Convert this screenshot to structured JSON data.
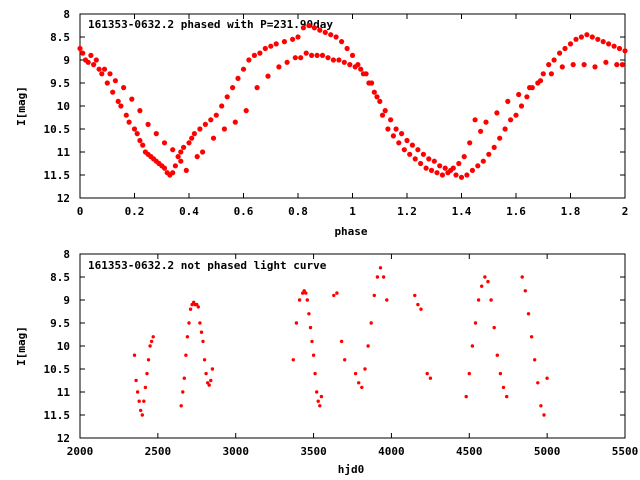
{
  "chart_data": [
    {
      "type": "scatter",
      "title": "161353-0632.2 phased with P=231.90day",
      "xlabel": "phase",
      "ylabel": "I[mag]",
      "xlim": [
        0,
        2
      ],
      "ylim": [
        8,
        12
      ],
      "y_inverted": true,
      "x_ticks": [
        "0",
        "0.2",
        "0.4",
        "0.6",
        "0.8",
        "1",
        "1.2",
        "1.4",
        "1.6",
        "1.8",
        "2"
      ],
      "y_ticks": [
        "8",
        "8.5",
        "9",
        "9.5",
        "10",
        "10.5",
        "11",
        "11.5",
        "12"
      ],
      "grid": false,
      "marker_color": "#ff0000",
      "series": [
        {
          "x": [
            0.0,
            0.01,
            0.02,
            0.03,
            0.05,
            0.07,
            0.08,
            0.1,
            0.12,
            0.14,
            0.15,
            0.17,
            0.18,
            0.2,
            0.21,
            0.22,
            0.23,
            0.24,
            0.25,
            0.26,
            0.27,
            0.28,
            0.29,
            0.3,
            0.31,
            0.32,
            0.33,
            0.34,
            0.35,
            0.36,
            0.37,
            0.38,
            0.4,
            0.41,
            0.42,
            0.44,
            0.46,
            0.48,
            0.5,
            0.52,
            0.54,
            0.56,
            0.58,
            0.6,
            0.62,
            0.64,
            0.66,
            0.68,
            0.7,
            0.72,
            0.75,
            0.78,
            0.8,
            0.82,
            0.84,
            0.86,
            0.88,
            0.9,
            0.92,
            0.94,
            0.96,
            0.98,
            1.0,
            1.02,
            1.04,
            1.06,
            1.08,
            1.1,
            1.12,
            1.14,
            1.16,
            1.18,
            1.2,
            1.22,
            1.24,
            1.26,
            1.28,
            1.3,
            1.32,
            1.34,
            1.36,
            1.38,
            1.4,
            1.42,
            1.44,
            1.46,
            1.48,
            1.5,
            1.52,
            1.54,
            1.56,
            1.58,
            1.6,
            1.62,
            1.64,
            1.66,
            1.68,
            1.7,
            1.72,
            1.74,
            1.76,
            1.78,
            1.8,
            1.82,
            1.84,
            1.86,
            1.88,
            1.9,
            1.92,
            1.94,
            1.96,
            1.98,
            2.0,
            0.04,
            0.06,
            0.09,
            0.11,
            0.13,
            0.16,
            0.19,
            0.22,
            0.25,
            0.28,
            0.31,
            0.34,
            0.37,
            0.39,
            0.43,
            0.45,
            0.49,
            0.53,
            0.57,
            0.61,
            0.65,
            0.69,
            0.73,
            0.76,
            0.79,
            0.81,
            0.83,
            0.85,
            0.87,
            0.89,
            0.91,
            0.93,
            0.95,
            0.97,
            0.99,
            1.01,
            1.03,
            1.05,
            1.07,
            1.09,
            1.11,
            1.13,
            1.15,
            1.17,
            1.19,
            1.21,
            1.23,
            1.25,
            1.27,
            1.29,
            1.31,
            1.33,
            1.35,
            1.37,
            1.39,
            1.41,
            1.43,
            1.45,
            1.47,
            1.49,
            1.53,
            1.57,
            1.61,
            1.65,
            1.69,
            1.73,
            1.77,
            1.81,
            1.85,
            1.89,
            1.93,
            1.97,
            1.99
          ],
          "y": [
            8.75,
            8.85,
            9.0,
            9.05,
            9.1,
            9.2,
            9.3,
            9.5,
            9.7,
            9.9,
            10.0,
            10.2,
            10.35,
            10.5,
            10.6,
            10.75,
            10.85,
            11.0,
            11.05,
            11.1,
            11.15,
            11.2,
            11.25,
            11.3,
            11.35,
            11.45,
            11.5,
            11.45,
            11.3,
            11.1,
            11.0,
            10.9,
            10.8,
            10.7,
            10.6,
            10.5,
            10.4,
            10.3,
            10.2,
            10.0,
            9.8,
            9.6,
            9.4,
            9.2,
            9.0,
            8.9,
            8.85,
            8.75,
            8.7,
            8.65,
            8.6,
            8.55,
            8.5,
            8.3,
            8.25,
            8.3,
            8.35,
            8.4,
            8.45,
            8.5,
            8.6,
            8.75,
            8.9,
            9.1,
            9.3,
            9.5,
            9.7,
            9.9,
            10.1,
            10.3,
            10.5,
            10.6,
            10.75,
            10.85,
            10.95,
            11.05,
            11.15,
            11.2,
            11.3,
            11.35,
            11.4,
            11.5,
            11.55,
            11.5,
            11.4,
            11.3,
            11.2,
            11.05,
            10.9,
            10.7,
            10.5,
            10.3,
            10.2,
            10.0,
            9.8,
            9.6,
            9.5,
            9.3,
            9.1,
            9.0,
            8.85,
            8.75,
            8.65,
            8.55,
            8.5,
            8.45,
            8.5,
            8.55,
            8.6,
            8.65,
            8.7,
            8.75,
            8.8,
            8.9,
            9.0,
            9.2,
            9.3,
            9.45,
            9.6,
            9.85,
            10.1,
            10.4,
            10.6,
            10.8,
            10.95,
            11.2,
            11.4,
            11.1,
            11.0,
            10.7,
            10.5,
            10.35,
            10.1,
            9.6,
            9.35,
            9.15,
            9.05,
            8.95,
            8.95,
            8.85,
            8.9,
            8.9,
            8.9,
            8.95,
            9.0,
            9.0,
            9.05,
            9.1,
            9.15,
            9.2,
            9.3,
            9.5,
            9.8,
            10.2,
            10.5,
            10.65,
            10.8,
            10.95,
            11.05,
            11.15,
            11.25,
            11.35,
            11.4,
            11.45,
            11.5,
            11.45,
            11.35,
            11.25,
            11.1,
            10.8,
            10.3,
            10.55,
            10.35,
            10.15,
            9.9,
            9.75,
            9.6,
            9.45,
            9.3,
            9.15,
            9.1,
            9.1,
            9.15,
            9.05,
            9.1,
            9.1
          ]
        }
      ]
    },
    {
      "type": "scatter",
      "title": "161353-0632.2 not phased light curve",
      "xlabel": "hjd0",
      "ylabel": "I[mag]",
      "xlim": [
        2000,
        5500
      ],
      "ylim": [
        8,
        12
      ],
      "y_inverted": true,
      "x_ticks": [
        "2000",
        "2500",
        "3000",
        "3500",
        "4000",
        "4500",
        "5000",
        "5500"
      ],
      "y_ticks": [
        "8",
        "8.5",
        "9",
        "9.5",
        "10",
        "10.5",
        "11",
        "11.5",
        "12"
      ],
      "grid": false,
      "marker_color": "#ff0000",
      "series": [
        {
          "x": [
            2350,
            2360,
            2370,
            2380,
            2390,
            2400,
            2410,
            2420,
            2430,
            2440,
            2450,
            2460,
            2470,
            2650,
            2660,
            2670,
            2680,
            2690,
            2700,
            2710,
            2720,
            2730,
            2740,
            2750,
            2760,
            2770,
            2780,
            2790,
            2800,
            2810,
            2820,
            2830,
            2840,
            2850,
            3370,
            3390,
            3410,
            3430,
            3440,
            3450,
            3460,
            3470,
            3480,
            3490,
            3500,
            3510,
            3520,
            3530,
            3540,
            3550,
            3630,
            3650,
            3680,
            3700,
            3770,
            3790,
            3810,
            3830,
            3850,
            3870,
            3890,
            3910,
            3930,
            3950,
            3970,
            4150,
            4170,
            4190,
            4230,
            4250,
            4480,
            4500,
            4520,
            4540,
            4560,
            4580,
            4600,
            4620,
            4640,
            4660,
            4680,
            4700,
            4720,
            4740,
            4840,
            4860,
            4880,
            4900,
            4920,
            4940,
            4960,
            4980,
            5000
          ],
          "y": [
            10.2,
            10.75,
            11.0,
            11.2,
            11.4,
            11.5,
            11.2,
            10.9,
            10.6,
            10.3,
            10.0,
            9.9,
            9.8,
            11.3,
            11.0,
            10.7,
            10.2,
            9.8,
            9.5,
            9.2,
            9.1,
            9.05,
            9.1,
            9.1,
            9.15,
            9.5,
            9.7,
            9.9,
            10.3,
            10.6,
            10.8,
            10.85,
            10.75,
            10.5,
            10.3,
            9.5,
            9.0,
            8.85,
            8.8,
            8.85,
            9.0,
            9.3,
            9.6,
            9.9,
            10.2,
            10.6,
            11.0,
            11.2,
            11.3,
            11.1,
            8.9,
            8.85,
            9.9,
            10.3,
            10.6,
            10.8,
            10.9,
            10.5,
            10.0,
            9.5,
            8.9,
            8.5,
            8.3,
            8.5,
            9.0,
            8.9,
            9.1,
            9.2,
            10.6,
            10.7,
            11.1,
            10.6,
            10.0,
            9.5,
            9.0,
            8.7,
            8.5,
            8.6,
            9.0,
            9.6,
            10.2,
            10.6,
            10.9,
            11.1,
            8.5,
            8.8,
            9.3,
            9.8,
            10.3,
            10.8,
            11.3,
            11.5,
            10.7
          ]
        }
      ]
    }
  ]
}
